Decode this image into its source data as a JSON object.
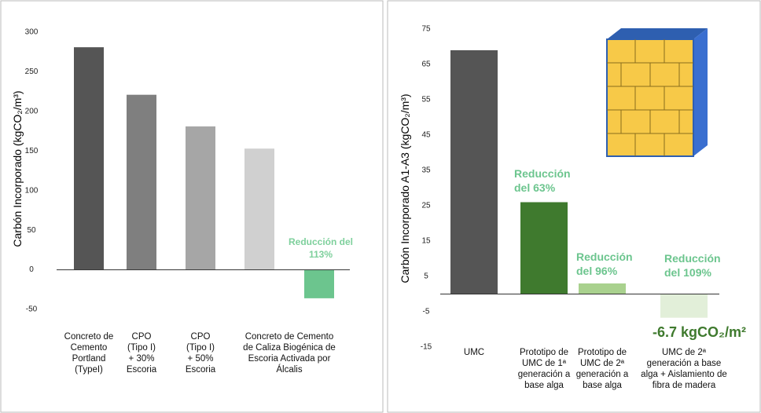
{
  "chart_data": [
    {
      "type": "bar",
      "y_label": "Carbón Incorporado (kgCO₂/m³)",
      "categories": [
        "Concreto de\nCemento\nPortland\n(TypeI)",
        "CPO\n(Tipo I)\n+ 30%\nEscoria",
        "CPO\n(Tipo I)\n+ 50%\nEscoria",
        "Concreto de Cemento\nde Caliza Biogénica de\nEscoria Activada por\nÁlcalis",
        null
      ],
      "values": [
        281,
        221,
        181,
        153,
        -36
      ],
      "colors": [
        "#555555",
        "#7f7f7f",
        "#a6a6a6",
        "#d0d0d0",
        "#6cc58e"
      ],
      "ylim": [
        -50,
        300
      ],
      "yticks": [
        300,
        250,
        200,
        150,
        100,
        50,
        0,
        -50
      ],
      "annotations": [
        {
          "text": "Reducción del\n113%",
          "color": "#7ed09c"
        }
      ]
    },
    {
      "type": "bar",
      "y_label": "Carbón Incorporado A1-A3 (kgCO₂/m³)",
      "categories": [
        "UMC",
        "Prototipo de\nUMC de 1ª\ngeneración a\nbase alga",
        "Prototipo de\nUMC de 2ª\ngeneración a\nbase alga",
        "UMC de 2ª\ngeneración a base\nalga + Aislamiento de\nfibra de madera"
      ],
      "values": [
        69,
        26,
        3,
        -6.7
      ],
      "colors": [
        "#555555",
        "#3f7a2e",
        "#a9d18e",
        "#e2efd9"
      ],
      "ylim": [
        -15,
        75
      ],
      "yticks": [
        75,
        65,
        55,
        45,
        35,
        25,
        15,
        5,
        -5,
        -15
      ],
      "annotations": [
        {
          "text": "Reducción\ndel 63%",
          "color": "#6cc58e"
        },
        {
          "text": "Reducción\ndel 96%",
          "color": "#6cc58e"
        },
        {
          "text": "Reducción\ndel 109%",
          "color": "#6cc58e"
        },
        {
          "text": "-6.7 kgCO₂/m²",
          "color": "#3f7a2e"
        }
      ]
    }
  ]
}
